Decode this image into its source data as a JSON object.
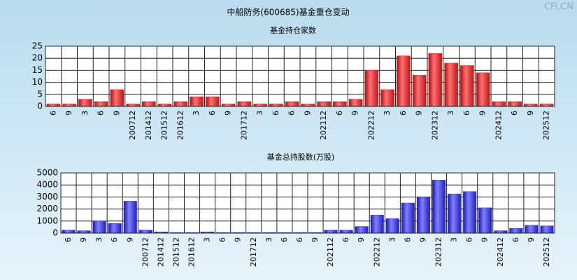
{
  "title": "中船防务(600685)基金重仓变动",
  "watermark": "CFi.CN",
  "chart_data": [
    {
      "type": "bar",
      "title": "基金持仓家数",
      "categories": [
        "6",
        "9",
        "3",
        "6",
        "9",
        "200712",
        "201412",
        "201512",
        "201612",
        "3",
        "6",
        "9",
        "201712",
        "3",
        "6",
        "6",
        "9",
        "202112",
        "6",
        "9",
        "202212",
        "3",
        "6",
        "9",
        "202312",
        "3",
        "6",
        "9",
        "202412",
        "6",
        "9",
        "202512"
      ],
      "values": [
        1,
        1,
        3,
        2,
        7,
        1,
        2,
        1,
        2,
        4,
        4,
        1,
        2,
        1,
        1,
        2,
        1,
        2,
        2,
        3,
        15,
        7,
        21,
        13,
        22,
        18,
        17,
        14,
        2,
        2,
        1,
        1
      ],
      "color": "#e03030",
      "ylim": [
        0,
        25
      ],
      "yticks": [
        0,
        5,
        10,
        15,
        20,
        25
      ],
      "grid": true
    },
    {
      "type": "bar",
      "title": "基金总持股数(万股)",
      "categories": [
        "6",
        "9",
        "3",
        "6",
        "9",
        "200712",
        "201412",
        "201512",
        "201612",
        "3",
        "6",
        "9",
        "201712",
        "3",
        "6",
        "6",
        "9",
        "202112",
        "6",
        "9",
        "202212",
        "3",
        "6",
        "9",
        "202312",
        "3",
        "6",
        "9",
        "202412",
        "6",
        "9",
        "202512"
      ],
      "values": [
        250,
        200,
        1000,
        800,
        2650,
        250,
        100,
        50,
        50,
        100,
        50,
        50,
        50,
        50,
        50,
        50,
        50,
        250,
        250,
        550,
        1500,
        1200,
        2500,
        3000,
        4400,
        3250,
        3450,
        2100,
        200,
        400,
        650,
        600
      ],
      "color": "#3030e0",
      "ylim": [
        0,
        5000
      ],
      "yticks": [
        0,
        1000,
        2000,
        3000,
        4000,
        5000
      ],
      "grid": true
    }
  ]
}
